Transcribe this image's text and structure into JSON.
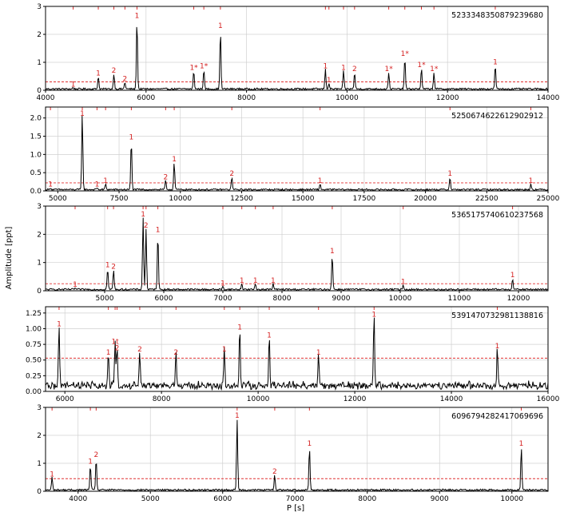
{
  "figure": {
    "xlabel": "P [s]",
    "ylabel": "Amplitude [ppt]",
    "colors": {
      "line": "#000000",
      "threshold": "#e03030",
      "label": "#d42020",
      "grid": "#d0d0d0",
      "tick_mark": "#e03030"
    }
  },
  "chart_data": [
    {
      "type": "line",
      "title": "5233348350879239680",
      "xlim": [
        4000,
        14000
      ],
      "ylim": [
        0,
        3
      ],
      "xticks": [
        4000,
        6000,
        8000,
        10000,
        12000,
        14000
      ],
      "yticks": [
        0,
        1,
        2,
        3
      ],
      "threshold": 0.3,
      "grid": true,
      "peaks": [
        {
          "x": 4550,
          "y": 0.05,
          "label": "1"
        },
        {
          "x": 5050,
          "y": 0.45,
          "label": "1"
        },
        {
          "x": 5360,
          "y": 0.55,
          "label": "2"
        },
        {
          "x": 5580,
          "y": 0.25,
          "label": "2"
        },
        {
          "x": 5820,
          "y": 2.5,
          "label": "1"
        },
        {
          "x": 6950,
          "y": 0.65,
          "label": "1*"
        },
        {
          "x": 7150,
          "y": 0.7,
          "label": "1*"
        },
        {
          "x": 7480,
          "y": 2.15,
          "label": "1"
        },
        {
          "x": 9570,
          "y": 0.7,
          "label": "1"
        },
        {
          "x": 9640,
          "y": 0.2,
          "label": "1"
        },
        {
          "x": 9930,
          "y": 0.65,
          "label": "1"
        },
        {
          "x": 10150,
          "y": 0.6,
          "label": "2"
        },
        {
          "x": 10830,
          "y": 0.6,
          "label": "1*"
        },
        {
          "x": 11150,
          "y": 1.15,
          "label": "1*"
        },
        {
          "x": 11480,
          "y": 0.75,
          "label": "1*"
        },
        {
          "x": 11730,
          "y": 0.6,
          "label": "1*"
        },
        {
          "x": 12950,
          "y": 0.85,
          "label": "1"
        }
      ]
    },
    {
      "type": "line",
      "title": "5250674622612902912",
      "xlim": [
        4500,
        25000
      ],
      "ylim": [
        0,
        2.3
      ],
      "xticks": [
        5000,
        7500,
        10000,
        12500,
        15000,
        17500,
        20000,
        22500,
        25000
      ],
      "yticks": [
        0.0,
        0.5,
        1.0,
        1.5,
        2.0
      ],
      "threshold": 0.22,
      "grid": true,
      "peaks": [
        {
          "x": 4700,
          "y": 0.05,
          "label": "1"
        },
        {
          "x": 6000,
          "y": 2.1,
          "label": "1"
        },
        {
          "x": 6600,
          "y": 0.05,
          "label": "1"
        },
        {
          "x": 6950,
          "y": 0.15,
          "label": "1"
        },
        {
          "x": 8000,
          "y": 1.35,
          "label": "1"
        },
        {
          "x": 9400,
          "y": 0.25,
          "label": "2"
        },
        {
          "x": 9750,
          "y": 0.75,
          "label": "1"
        },
        {
          "x": 12100,
          "y": 0.35,
          "label": "2"
        },
        {
          "x": 15700,
          "y": 0.15,
          "label": "1"
        },
        {
          "x": 21000,
          "y": 0.35,
          "label": "1"
        },
        {
          "x": 24300,
          "y": 0.15,
          "label": "1"
        }
      ]
    },
    {
      "type": "line",
      "title": "5365175740610237568",
      "xlim": [
        4000,
        12500
      ],
      "ylim": [
        0,
        3
      ],
      "xticks": [
        5000,
        6000,
        7000,
        8000,
        9000,
        10000,
        11000,
        12000
      ],
      "yticks": [
        0,
        1,
        2,
        3
      ],
      "threshold": 0.25,
      "grid": true,
      "peaks": [
        {
          "x": 4500,
          "y": 0.05,
          "label": "1"
        },
        {
          "x": 5050,
          "y": 0.75,
          "label": "1"
        },
        {
          "x": 5150,
          "y": 0.7,
          "label": "2"
        },
        {
          "x": 5650,
          "y": 2.55,
          "label": "1"
        },
        {
          "x": 5700,
          "y": 2.15,
          "label": "2"
        },
        {
          "x": 5900,
          "y": 2.0,
          "label": "1"
        },
        {
          "x": 7000,
          "y": 0.1,
          "label": "1"
        },
        {
          "x": 7320,
          "y": 0.2,
          "label": "1"
        },
        {
          "x": 7550,
          "y": 0.2,
          "label": "1"
        },
        {
          "x": 7850,
          "y": 0.2,
          "label": "1"
        },
        {
          "x": 8850,
          "y": 1.25,
          "label": "1"
        },
        {
          "x": 10050,
          "y": 0.15,
          "label": "1"
        },
        {
          "x": 11900,
          "y": 0.4,
          "label": "1"
        }
      ]
    },
    {
      "type": "line",
      "title": "5391470732981138816",
      "xlim": [
        5600,
        16000
      ],
      "ylim": [
        0,
        1.35
      ],
      "xticks": [
        6000,
        8000,
        10000,
        12000,
        14000,
        16000
      ],
      "yticks": [
        0.0,
        0.25,
        0.5,
        0.75,
        1.0,
        1.25
      ],
      "threshold": 0.53,
      "grid": true,
      "peaks": [
        {
          "x": 5880,
          "y": 1.0,
          "label": "1"
        },
        {
          "x": 6900,
          "y": 0.55,
          "label": "1"
        },
        {
          "x": 7040,
          "y": 0.72,
          "label": "1t"
        },
        {
          "x": 7080,
          "y": 0.62,
          "label": "2"
        },
        {
          "x": 7550,
          "y": 0.6,
          "label": "2"
        },
        {
          "x": 8300,
          "y": 0.55,
          "label": "2"
        },
        {
          "x": 9300,
          "y": 0.6,
          "label": "1"
        },
        {
          "x": 9620,
          "y": 0.95,
          "label": "1"
        },
        {
          "x": 10230,
          "y": 0.82,
          "label": "1"
        },
        {
          "x": 11250,
          "y": 0.55,
          "label": "1"
        },
        {
          "x": 12400,
          "y": 1.15,
          "label": "1"
        },
        {
          "x": 14950,
          "y": 0.65,
          "label": "1"
        }
      ]
    },
    {
      "type": "line",
      "title": "6096794282417069696",
      "xlim": [
        3550,
        10500
      ],
      "ylim": [
        0,
        3
      ],
      "xticks": [
        4000,
        5000,
        6000,
        7000,
        8000,
        9000,
        10000
      ],
      "yticks": [
        0,
        1,
        2,
        3
      ],
      "threshold": 0.45,
      "grid": true,
      "peaks": [
        {
          "x": 3640,
          "y": 0.45,
          "label": "1"
        },
        {
          "x": 4170,
          "y": 0.9,
          "label": "1"
        },
        {
          "x": 4250,
          "y": 1.15,
          "label": "2"
        },
        {
          "x": 6200,
          "y": 2.55,
          "label": "1"
        },
        {
          "x": 6720,
          "y": 0.55,
          "label": "2"
        },
        {
          "x": 7200,
          "y": 1.55,
          "label": "1"
        },
        {
          "x": 10130,
          "y": 1.55,
          "label": "1"
        }
      ]
    }
  ]
}
